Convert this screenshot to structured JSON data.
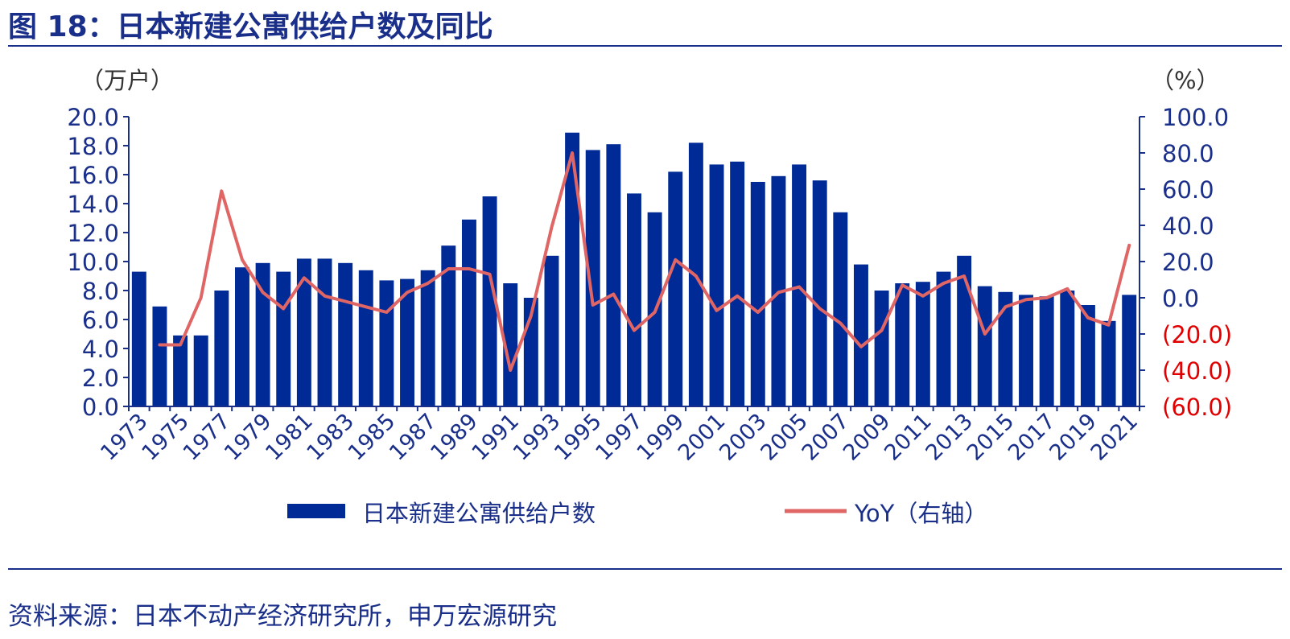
{
  "title": "图 18：日本新建公寓供给户数及同比",
  "source": "资料来源：日本不动产经济研究所，申万宏源研究",
  "colors": {
    "bar": "#002b96",
    "line": "#e06666",
    "axis": "#1a2f8a",
    "negative": "#e00000"
  },
  "chart_data": {
    "type": "bar+line",
    "x": [
      1973,
      1974,
      1975,
      1976,
      1977,
      1978,
      1979,
      1980,
      1981,
      1982,
      1983,
      1984,
      1985,
      1986,
      1987,
      1988,
      1989,
      1990,
      1991,
      1992,
      1993,
      1994,
      1995,
      1996,
      1997,
      1998,
      1999,
      2000,
      2001,
      2002,
      2003,
      2004,
      2005,
      2006,
      2007,
      2008,
      2009,
      2010,
      2011,
      2012,
      2013,
      2014,
      2015,
      2016,
      2017,
      2018,
      2019,
      2020,
      2021
    ],
    "x_tick_labels": [
      "1973",
      "1975",
      "1977",
      "1979",
      "1981",
      "1983",
      "1985",
      "1987",
      "1989",
      "1991",
      "1993",
      "1995",
      "1997",
      "1999",
      "2001",
      "2003",
      "2005",
      "2007",
      "2009",
      "2011",
      "2013",
      "2015",
      "2017",
      "2019",
      "2021"
    ],
    "y_left_label": "（万户）",
    "y_right_label": "（%）",
    "y_left_range": [
      0,
      20
    ],
    "y_right_range": [
      -60,
      100
    ],
    "y_left_ticks": [
      "0.0",
      "2.0",
      "4.0",
      "6.0",
      "8.0",
      "10.0",
      "12.0",
      "14.0",
      "16.0",
      "18.0",
      "20.0"
    ],
    "y_right_ticks": [
      "(60.0)",
      "(40.0)",
      "(20.0)",
      "0.0",
      "20.0",
      "40.0",
      "60.0",
      "80.0",
      "100.0"
    ],
    "series": [
      {
        "name": "日本新建公寓供给户数",
        "type": "bar",
        "axis": "left",
        "values": [
          9.3,
          6.9,
          4.9,
          4.9,
          8.0,
          9.6,
          9.9,
          9.3,
          10.2,
          10.2,
          9.9,
          9.4,
          8.7,
          8.8,
          9.4,
          11.1,
          12.9,
          14.5,
          8.5,
          7.5,
          10.4,
          18.9,
          17.7,
          18.1,
          14.7,
          13.4,
          16.2,
          18.2,
          16.7,
          16.9,
          15.5,
          15.9,
          16.7,
          15.6,
          13.4,
          9.8,
          8.0,
          8.5,
          8.6,
          9.3,
          10.4,
          8.3,
          7.9,
          7.7,
          7.6,
          8.0,
          7.0,
          5.9,
          7.7
        ]
      },
      {
        "name": "YoY（右轴）",
        "type": "line",
        "axis": "right",
        "values": [
          null,
          -26,
          -26,
          0,
          59,
          21,
          3,
          -6,
          11,
          1,
          -2,
          -5,
          -8,
          3,
          8,
          16,
          16,
          13,
          -40,
          -10,
          39,
          80,
          -4,
          2,
          -18,
          -8,
          21,
          12,
          -7,
          1,
          -8,
          3,
          6,
          -6,
          -14,
          -27,
          -18,
          7,
          1,
          8,
          12,
          -20,
          -5,
          -1,
          0,
          5,
          -11,
          -15,
          29
        ]
      }
    ],
    "legend": {
      "placement": "bottom",
      "items": [
        "日本新建公寓供给户数",
        "YoY（右轴）"
      ]
    },
    "grid": false
  }
}
